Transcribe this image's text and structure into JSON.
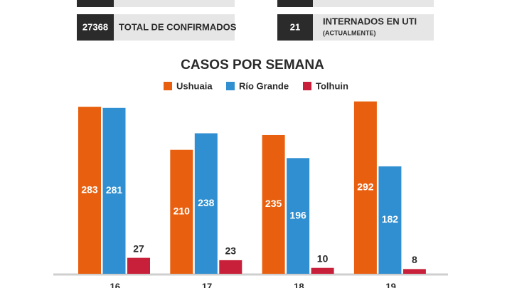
{
  "stats": [
    {
      "value": 27368,
      "label": "TOTAL DE CONFIRMADOS"
    },
    {
      "value": 21,
      "label": "INTERNADOS EN UTI",
      "note": "(ACTUALMENTE)"
    }
  ],
  "chart_data": {
    "type": "bar",
    "title": "CASOS POR SEMANA",
    "categories": [
      "16",
      "17",
      "18",
      "19"
    ],
    "series": [
      {
        "name": "Ushuaia",
        "color": "#e8600f",
        "values": [
          283,
          210,
          235,
          292
        ]
      },
      {
        "name": "Río Grande",
        "color": "#2f8fd0",
        "values": [
          281,
          238,
          196,
          182
        ]
      },
      {
        "name": "Tolhuin",
        "color": "#c8203a",
        "values": [
          27,
          23,
          10,
          8
        ]
      }
    ]
  }
}
